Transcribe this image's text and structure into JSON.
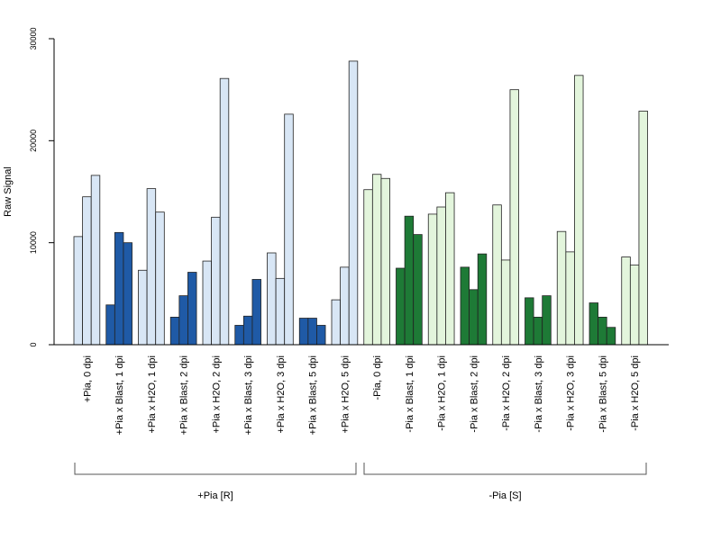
{
  "chart_data": {
    "type": "bar",
    "ylabel": "Raw Signal",
    "xlabel": "",
    "title": "",
    "ylim": [
      0,
      30000
    ],
    "yticks": [
      0,
      10000,
      20000,
      30000
    ],
    "ytick_labels": [
      "0",
      "10000",
      "20000",
      "30000"
    ],
    "grid": false,
    "colors": {
      "light_blue": "#d8e6f5",
      "dark_blue": "#1f5aa6",
      "light_green": "#e3f5dc",
      "dark_green": "#1e7a36",
      "outline": "#222222"
    },
    "categories": [
      {
        "label": "+Pia, 0 dpi",
        "values": [
          10600,
          14500,
          16600
        ],
        "color": "light_blue"
      },
      {
        "label": "+Pia x Blast, 1 dpi",
        "values": [
          3900,
          11000,
          10000
        ],
        "color": "dark_blue"
      },
      {
        "label": "+Pia x H2O, 1 dpi",
        "values": [
          7300,
          15300,
          13000
        ],
        "color": "light_blue"
      },
      {
        "label": "+Pia x Blast, 2 dpi",
        "values": [
          2700,
          4800,
          7100
        ],
        "color": "dark_blue"
      },
      {
        "label": "+Pia x H2O, 2 dpi",
        "values": [
          8200,
          12500,
          26100
        ],
        "color": "light_blue"
      },
      {
        "label": "+Pia x Blast, 3 dpi",
        "values": [
          1900,
          2800,
          6400
        ],
        "color": "dark_blue"
      },
      {
        "label": "+Pia x H2O, 3 dpi",
        "values": [
          9000,
          6500,
          22600
        ],
        "color": "light_blue"
      },
      {
        "label": "+Pia x Blast, 5 dpi",
        "values": [
          2600,
          2600,
          1900
        ],
        "color": "dark_blue"
      },
      {
        "label": "+Pia x H2O, 5 dpi",
        "values": [
          4400,
          7600,
          27800
        ],
        "color": "light_blue"
      },
      {
        "label": "-Pia, 0 dpi",
        "values": [
          15200,
          16700,
          16300
        ],
        "color": "light_green"
      },
      {
        "label": "-Pia x Blast, 1 dpi",
        "values": [
          7500,
          12600,
          10800
        ],
        "color": "dark_green"
      },
      {
        "label": "-Pia x H2O, 1 dpi",
        "values": [
          12800,
          13500,
          14900
        ],
        "color": "light_green"
      },
      {
        "label": "-Pia x Blast, 2 dpi",
        "values": [
          7600,
          5400,
          8900
        ],
        "color": "dark_green"
      },
      {
        "label": "-Pia x H2O, 2 dpi",
        "values": [
          13700,
          8300,
          25000
        ],
        "color": "light_green"
      },
      {
        "label": "-Pia x Blast, 3 dpi",
        "values": [
          4600,
          2700,
          4800
        ],
        "color": "dark_green"
      },
      {
        "label": "-Pia x H2O, 3 dpi",
        "values": [
          11100,
          9100,
          26400
        ],
        "color": "light_green"
      },
      {
        "label": "-Pia x Blast, 5 dpi",
        "values": [
          4100,
          2700,
          1700
        ],
        "color": "dark_green"
      },
      {
        "label": "-Pia x H2O, 5 dpi",
        "values": [
          8600,
          7800,
          22900
        ],
        "color": "light_green"
      }
    ],
    "groups": [
      {
        "label": "+Pia [R]",
        "first": 0,
        "last": 8
      },
      {
        "label": "-Pia [S]",
        "first": 9,
        "last": 17
      }
    ]
  }
}
